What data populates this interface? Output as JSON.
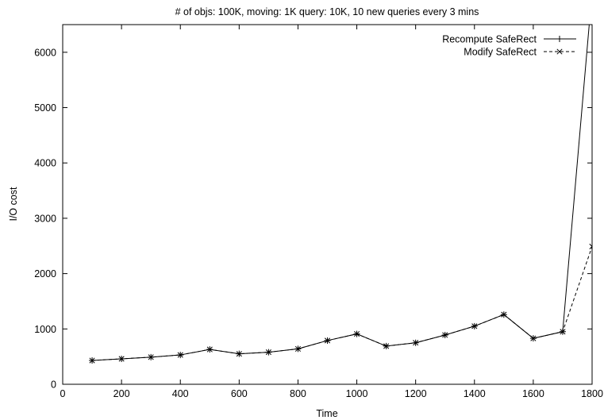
{
  "chart_data": {
    "type": "line",
    "title": "# of objs: 100K, moving: 1K query: 10K, 10 new queries every 3 mins",
    "xlabel": "Time",
    "ylabel": "I/O cost",
    "xlim": [
      0,
      1800
    ],
    "ylim": [
      0,
      6500
    ],
    "x_ticks": [
      0,
      200,
      400,
      600,
      800,
      1000,
      1200,
      1400,
      1600,
      1800
    ],
    "y_ticks": [
      0,
      1000,
      2000,
      3000,
      4000,
      5000,
      6000
    ],
    "grid": false,
    "legend_position": "top-right",
    "series": [
      {
        "name": "Recompute SafeRect",
        "line_style": "solid",
        "marker": "plus",
        "x": [
          100,
          200,
          300,
          400,
          500,
          600,
          700,
          800,
          900,
          1000,
          1100,
          1200,
          1300,
          1400,
          1500,
          1600,
          1700,
          1800
        ],
        "y": [
          430,
          460,
          490,
          530,
          630,
          550,
          580,
          640,
          790,
          910,
          690,
          750,
          890,
          1050,
          1260,
          830,
          950,
          7100
        ]
      },
      {
        "name": "Modify SafeRect",
        "line_style": "dashed",
        "marker": "x",
        "x": [
          100,
          200,
          300,
          400,
          500,
          600,
          700,
          800,
          900,
          1000,
          1100,
          1200,
          1300,
          1400,
          1500,
          1600,
          1700,
          1800
        ],
        "y": [
          430,
          460,
          490,
          530,
          630,
          550,
          580,
          640,
          790,
          910,
          690,
          750,
          890,
          1050,
          1260,
          830,
          950,
          2490
        ]
      }
    ]
  }
}
